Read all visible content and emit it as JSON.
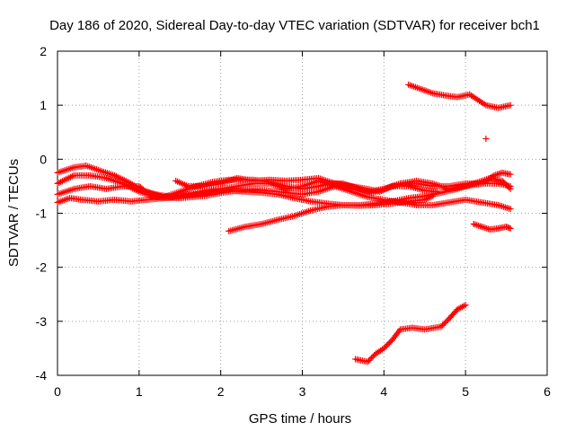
{
  "chart_data": {
    "type": "scatter",
    "title": "Day 186 of 2020, Sidereal Day-to-day VTEC variation (SDTVAR) for receiver bch1",
    "xlabel": "GPS time / hours",
    "ylabel": "SDTVAR / TECUs",
    "xlim": [
      0,
      6
    ],
    "ylim": [
      -4,
      2
    ],
    "xticks": [
      "0",
      "1",
      "2",
      "3",
      "4",
      "5",
      "6"
    ],
    "yticks": [
      "-4",
      "-3",
      "-2",
      "-1",
      "0",
      "1",
      "2"
    ],
    "grid": true,
    "marker": "plus",
    "color": "#ff0000",
    "series": [
      {
        "name": "track-a",
        "points": [
          [
            0,
            -0.25
          ],
          [
            0.2,
            -0.15
          ],
          [
            0.35,
            -0.12
          ],
          [
            0.5,
            -0.2
          ],
          [
            0.7,
            -0.3
          ],
          [
            0.9,
            -0.45
          ],
          [
            1.0,
            -0.55
          ],
          [
            1.2,
            -0.65
          ],
          [
            1.4,
            -0.7
          ],
          [
            1.6,
            -0.65
          ],
          [
            1.8,
            -0.6
          ],
          [
            2.0,
            -0.55
          ],
          [
            2.2,
            -0.5
          ],
          [
            2.4,
            -0.45
          ],
          [
            2.6,
            -0.45
          ],
          [
            2.8,
            -0.55
          ],
          [
            3.0,
            -0.5
          ],
          [
            3.2,
            -0.4
          ],
          [
            3.4,
            -0.5
          ],
          [
            3.6,
            -0.6
          ],
          [
            3.8,
            -0.7
          ],
          [
            4.0,
            -0.75
          ],
          [
            4.2,
            -0.8
          ],
          [
            4.4,
            -0.85
          ],
          [
            4.6,
            -0.85
          ],
          [
            4.8,
            -0.8
          ],
          [
            5.0,
            -0.75
          ],
          [
            5.2,
            -0.8
          ],
          [
            5.4,
            -0.85
          ],
          [
            5.55,
            -0.92
          ]
        ]
      },
      {
        "name": "track-b",
        "points": [
          [
            0,
            -0.45
          ],
          [
            0.2,
            -0.3
          ],
          [
            0.4,
            -0.3
          ],
          [
            0.6,
            -0.35
          ],
          [
            0.8,
            -0.45
          ],
          [
            1.0,
            -0.6
          ],
          [
            1.2,
            -0.7
          ],
          [
            1.5,
            -0.72
          ],
          [
            1.8,
            -0.68
          ],
          [
            2.1,
            -0.6
          ],
          [
            2.4,
            -0.55
          ],
          [
            2.7,
            -0.6
          ],
          [
            3.0,
            -0.65
          ],
          [
            3.2,
            -0.6
          ],
          [
            3.4,
            -0.5
          ],
          [
            3.6,
            -0.55
          ],
          [
            3.8,
            -0.6
          ],
          [
            4.0,
            -0.55
          ],
          [
            4.2,
            -0.45
          ],
          [
            4.4,
            -0.4
          ],
          [
            4.6,
            -0.45
          ],
          [
            4.8,
            -0.55
          ],
          [
            5.0,
            -0.5
          ],
          [
            5.2,
            -0.45
          ],
          [
            5.35,
            -0.3
          ],
          [
            5.45,
            -0.25
          ],
          [
            5.55,
            -0.28
          ]
        ]
      },
      {
        "name": "track-c",
        "points": [
          [
            0,
            -0.65
          ],
          [
            0.2,
            -0.55
          ],
          [
            0.4,
            -0.5
          ],
          [
            0.6,
            -0.55
          ],
          [
            0.8,
            -0.5
          ],
          [
            1.0,
            -0.5
          ],
          [
            1.1,
            -0.62
          ],
          [
            1.3,
            -0.7
          ],
          [
            1.5,
            -0.6
          ],
          [
            1.7,
            -0.5
          ],
          [
            1.9,
            -0.42
          ],
          [
            2.1,
            -0.38
          ],
          [
            2.4,
            -0.38
          ],
          [
            2.6,
            -0.42
          ],
          [
            2.8,
            -0.5
          ],
          [
            3.0,
            -0.55
          ],
          [
            3.2,
            -0.5
          ],
          [
            3.35,
            -0.45
          ],
          [
            3.5,
            -0.45
          ],
          [
            3.7,
            -0.55
          ],
          [
            3.85,
            -0.62
          ],
          [
            4.0,
            -0.55
          ],
          [
            4.2,
            -0.45
          ],
          [
            4.4,
            -0.45
          ],
          [
            4.6,
            -0.5
          ],
          [
            4.8,
            -0.5
          ],
          [
            5.0,
            -0.45
          ],
          [
            5.2,
            -0.45
          ],
          [
            5.4,
            -0.45
          ],
          [
            5.55,
            -0.5
          ]
        ]
      },
      {
        "name": "track-d",
        "points": [
          [
            0,
            -0.8
          ],
          [
            0.15,
            -0.72
          ],
          [
            0.3,
            -0.75
          ],
          [
            0.5,
            -0.78
          ],
          [
            0.7,
            -0.75
          ],
          [
            0.9,
            -0.78
          ],
          [
            1.1,
            -0.75
          ],
          [
            1.3,
            -0.72
          ],
          [
            1.5,
            -0.7
          ],
          [
            1.7,
            -0.65
          ],
          [
            1.9,
            -0.6
          ],
          [
            2.1,
            -0.58
          ],
          [
            2.3,
            -0.6
          ],
          [
            2.5,
            -0.62
          ],
          [
            2.7,
            -0.65
          ],
          [
            2.9,
            -0.72
          ],
          [
            3.1,
            -0.78
          ],
          [
            3.3,
            -0.82
          ],
          [
            3.5,
            -0.85
          ],
          [
            3.7,
            -0.85
          ],
          [
            3.9,
            -0.82
          ],
          [
            4.1,
            -0.78
          ],
          [
            4.3,
            -0.72
          ],
          [
            4.5,
            -0.68
          ],
          [
            4.7,
            -0.62
          ],
          [
            4.9,
            -0.55
          ],
          [
            5.1,
            -0.45
          ],
          [
            5.3,
            -0.35
          ],
          [
            5.45,
            -0.4
          ],
          [
            5.55,
            -0.55
          ]
        ]
      },
      {
        "name": "track-e",
        "points": [
          [
            1.45,
            -0.4
          ],
          [
            1.6,
            -0.5
          ],
          [
            1.8,
            -0.5
          ],
          [
            2.0,
            -0.45
          ],
          [
            2.2,
            -0.35
          ],
          [
            2.4,
            -0.4
          ],
          [
            2.6,
            -0.38
          ],
          [
            2.8,
            -0.4
          ],
          [
            3.0,
            -0.38
          ],
          [
            3.2,
            -0.35
          ],
          [
            3.4,
            -0.45
          ],
          [
            3.6,
            -0.5
          ],
          [
            3.8,
            -0.55
          ],
          [
            3.95,
            -0.6
          ],
          [
            4.1,
            -0.5
          ],
          [
            4.3,
            -0.5
          ],
          [
            4.5,
            -0.58
          ],
          [
            4.65,
            -0.6
          ]
        ]
      },
      {
        "name": "track-f",
        "points": [
          [
            2.1,
            -1.33
          ],
          [
            2.3,
            -1.25
          ],
          [
            2.5,
            -1.2
          ],
          [
            2.7,
            -1.12
          ],
          [
            2.9,
            -1.05
          ],
          [
            3.1,
            -0.95
          ],
          [
            3.3,
            -0.88
          ],
          [
            3.5,
            -0.85
          ],
          [
            3.7,
            -0.86
          ],
          [
            3.9,
            -0.85
          ],
          [
            4.1,
            -0.82
          ],
          [
            4.3,
            -0.78
          ],
          [
            4.5,
            -0.75
          ],
          [
            4.6,
            -0.68
          ]
        ]
      },
      {
        "name": "track-g",
        "points": [
          [
            4.3,
            1.38
          ],
          [
            4.45,
            1.3
          ],
          [
            4.6,
            1.22
          ],
          [
            4.75,
            1.18
          ],
          [
            4.9,
            1.15
          ],
          [
            5.05,
            1.2
          ],
          [
            5.15,
            1.1
          ],
          [
            5.25,
            1.0
          ],
          [
            5.4,
            0.95
          ],
          [
            5.55,
            1.0
          ]
        ]
      },
      {
        "name": "track-h",
        "points": [
          [
            5.25,
            0.38
          ]
        ]
      },
      {
        "name": "track-i",
        "points": [
          [
            5.1,
            -1.2
          ],
          [
            5.2,
            -1.25
          ],
          [
            5.3,
            -1.3
          ],
          [
            5.4,
            -1.28
          ],
          [
            5.5,
            -1.25
          ],
          [
            5.55,
            -1.28
          ]
        ]
      },
      {
        "name": "track-j",
        "points": [
          [
            3.65,
            -3.7
          ],
          [
            3.8,
            -3.75
          ],
          [
            3.9,
            -3.6
          ],
          [
            4.0,
            -3.5
          ],
          [
            4.1,
            -3.35
          ],
          [
            4.2,
            -3.15
          ],
          [
            4.35,
            -3.12
          ],
          [
            4.5,
            -3.15
          ],
          [
            4.7,
            -3.1
          ],
          [
            4.8,
            -2.95
          ],
          [
            4.9,
            -2.78
          ],
          [
            5.0,
            -2.7
          ]
        ]
      }
    ]
  }
}
